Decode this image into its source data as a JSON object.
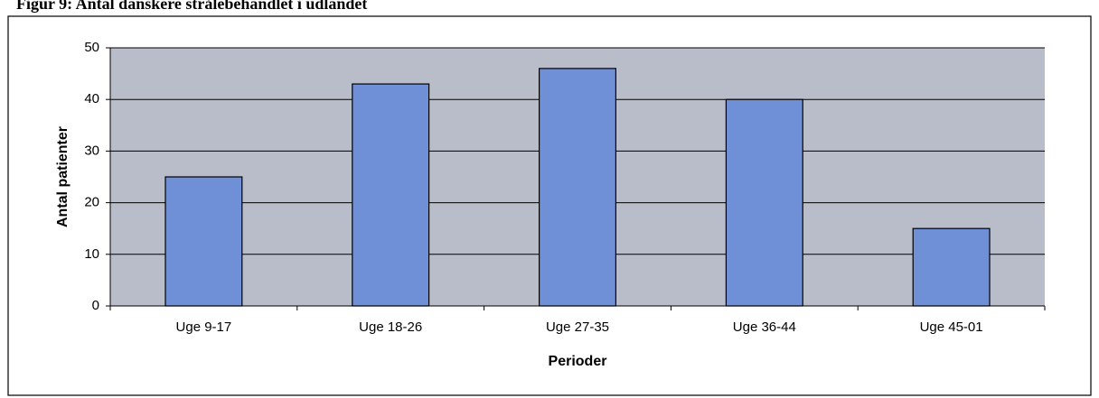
{
  "chart_data": {
    "type": "bar",
    "title": "Figur 9: Antal danskere strålebehandlet i udlandet",
    "x_label": "Perioder",
    "y_label": "Antal patienter",
    "categories": [
      "Uge 9-17",
      "Uge 18-26",
      "Uge 27-35",
      "Uge 36-44",
      "Uge 45-01"
    ],
    "values": [
      25,
      43,
      46,
      40,
      15
    ],
    "color": "#6f8fd6",
    "ylim": [
      0,
      50
    ],
    "yticks": [
      0,
      10,
      20,
      30,
      40,
      50
    ],
    "grid": true
  }
}
